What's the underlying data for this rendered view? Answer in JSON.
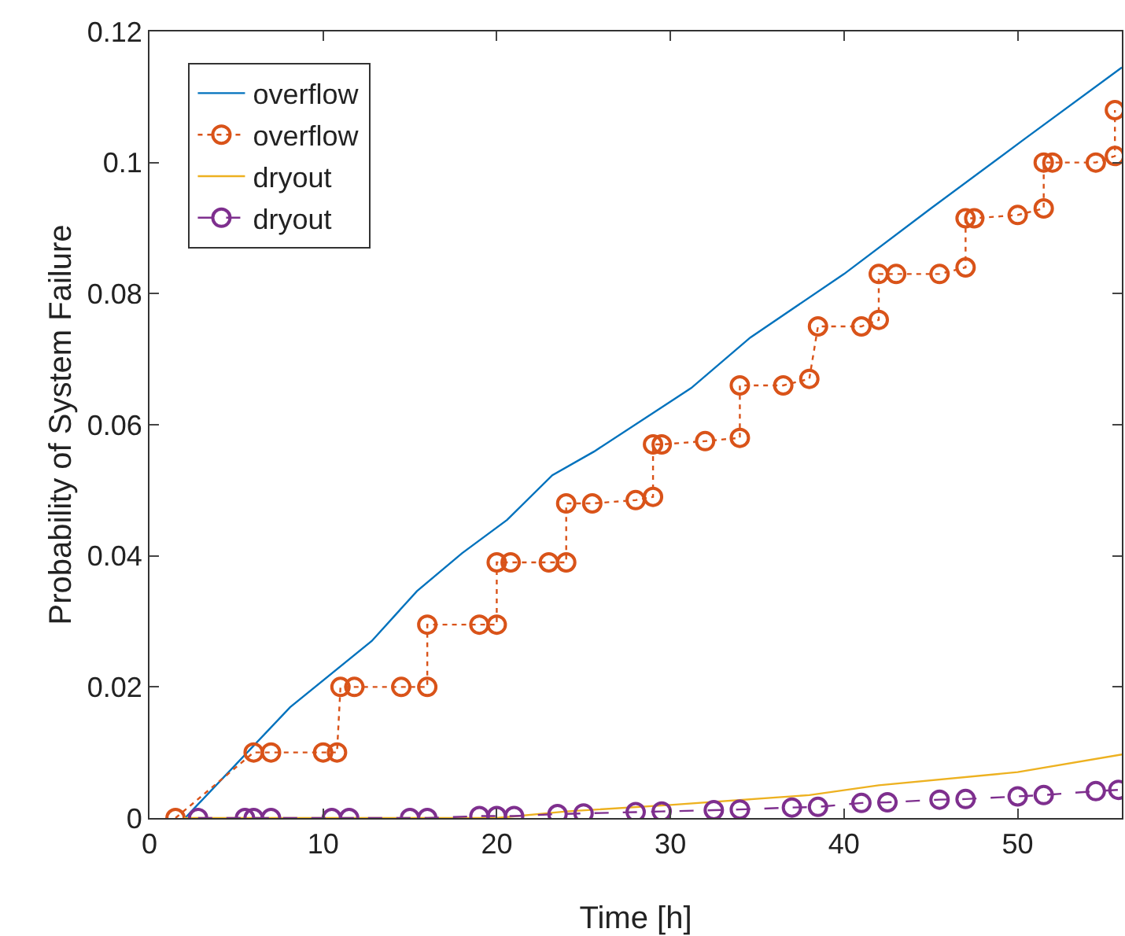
{
  "chart_data": {
    "type": "line",
    "xlabel": "Time [h]",
    "ylabel": "Probability of System Failure",
    "xlim": [
      0,
      56
    ],
    "ylim": [
      0,
      0.12
    ],
    "xticks": [
      0,
      10,
      20,
      30,
      40,
      50
    ],
    "yticks": [
      0,
      0.02,
      0.04,
      0.06,
      0.08,
      0.1,
      0.12
    ],
    "grid": false,
    "legend": "top left",
    "series": [
      {
        "name": "overflow",
        "color": "#0072bd",
        "marker": "none",
        "line_style": "solid",
        "x": [
          2.05,
          8.1,
          12.8,
          15.4,
          18,
          20.6,
          23.2,
          25.6,
          31.2,
          34.6,
          40,
          45,
          50.4,
          56
        ],
        "values": [
          0,
          0.0169,
          0.027,
          0.0346,
          0.0404,
          0.0455,
          0.0523,
          0.0559,
          0.0656,
          0.0733,
          0.083,
          0.093,
          0.1036,
          0.1145
        ]
      },
      {
        "name": "overflow",
        "color": "#d95319",
        "marker": "circle",
        "line_style": "dotted",
        "x": [
          1.5,
          6,
          7,
          10,
          10.8,
          11,
          11.8,
          14.5,
          16,
          16,
          19,
          20,
          20,
          20.8,
          23,
          24,
          24,
          25.5,
          28,
          29,
          29,
          29.5,
          32,
          34,
          34,
          36.5,
          38,
          38.5,
          41,
          42,
          42,
          43,
          45.5,
          47,
          47,
          47.5,
          50,
          51.5,
          51.5,
          52,
          54.5,
          55.6,
          55.6
        ],
        "values": [
          0,
          0.01,
          0.01,
          0.01,
          0.01,
          0.02,
          0.02,
          0.02,
          0.02,
          0.0295,
          0.0295,
          0.0295,
          0.039,
          0.039,
          0.039,
          0.039,
          0.048,
          0.048,
          0.0485,
          0.049,
          0.057,
          0.057,
          0.0575,
          0.058,
          0.066,
          0.066,
          0.067,
          0.075,
          0.075,
          0.076,
          0.083,
          0.083,
          0.083,
          0.084,
          0.0915,
          0.0915,
          0.092,
          0.093,
          0.1,
          0.1,
          0.1,
          0.101,
          0.108
        ]
      },
      {
        "name": "dryout",
        "color": "#edb120",
        "marker": "none",
        "line_style": "solid",
        "x": [
          2,
          20,
          24,
          30,
          38,
          42,
          50,
          56
        ],
        "values": [
          0,
          0,
          0.001,
          0.002,
          0.0035,
          0.005,
          0.007,
          0.0097
        ]
      },
      {
        "name": "dryout",
        "color": "#7e2f8e",
        "marker": "circle",
        "line_style": "dashed",
        "x": [
          2.8,
          5.5,
          6,
          7,
          10.5,
          11.5,
          15,
          16,
          19,
          20,
          21,
          23.5,
          25,
          28,
          29.5,
          32.5,
          34,
          37,
          38.5,
          41,
          42.5,
          45.5,
          47,
          50,
          51.5,
          54.5,
          55.8
        ],
        "values": [
          0,
          0,
          0,
          0,
          0,
          0,
          0,
          0,
          0.0003,
          0.0003,
          0.0003,
          0.0006,
          0.0007,
          0.0009,
          0.001,
          0.0012,
          0.0013,
          0.0016,
          0.0017,
          0.0023,
          0.0024,
          0.0028,
          0.0029,
          0.0033,
          0.0035,
          0.0041,
          0.0043
        ]
      }
    ]
  }
}
